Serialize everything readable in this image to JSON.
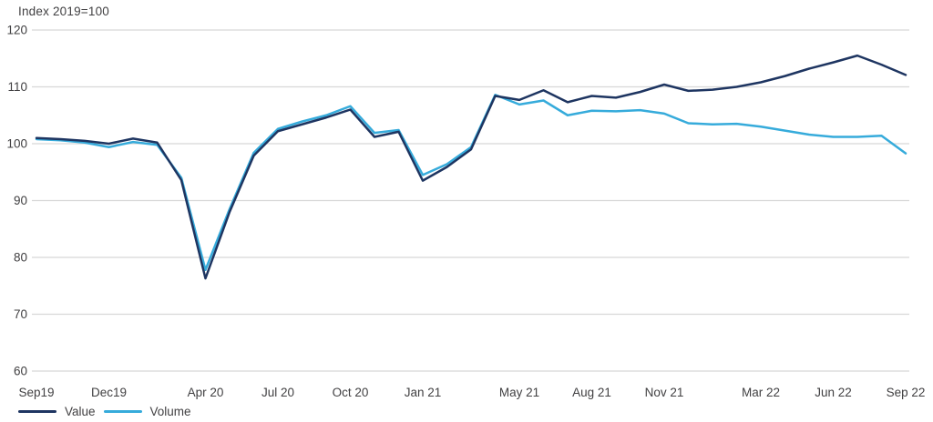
{
  "title": "Index 2019=100",
  "colors": {
    "background": "#ffffff",
    "grid": "#d8d8d8",
    "text": "#414042",
    "value_line": "#1e3561",
    "volume_line": "#36abdb"
  },
  "chart_data": {
    "type": "line",
    "title": "Index 2019=100",
    "xlabel": "",
    "ylabel": "Index 2019=100",
    "ylim": [
      60,
      120
    ],
    "y_ticks": [
      120,
      110,
      100,
      90,
      80,
      70,
      60
    ],
    "grid": "horizontal",
    "legend_position": "bottom-left",
    "x_unit": "monthly, Sep 2019 to Sep 2022",
    "n_points": 37,
    "x_ticks": [
      {
        "label": "Sep19",
        "month_index": 0
      },
      {
        "label": "Dec19",
        "month_index": 3
      },
      {
        "label": "Apr 20",
        "month_index": 7
      },
      {
        "label": "Jul 20",
        "month_index": 10
      },
      {
        "label": "Oct 20",
        "month_index": 13
      },
      {
        "label": "Jan 21",
        "month_index": 16
      },
      {
        "label": "May 21",
        "month_index": 20
      },
      {
        "label": "Aug 21",
        "month_index": 23
      },
      {
        "label": "Nov 21",
        "month_index": 26
      },
      {
        "label": "Mar 22",
        "month_index": 30
      },
      {
        "label": "Jun 22",
        "month_index": 33
      },
      {
        "label": "Sep 22",
        "month_index": 36
      }
    ],
    "series": [
      {
        "name": "Value",
        "color": "#1e3561",
        "values": [
          101.0,
          100.8,
          100.5,
          100.0,
          100.9,
          100.2,
          93.6,
          76.3,
          88.0,
          97.9,
          102.2,
          103.4,
          104.6,
          106.0,
          101.2,
          102.1,
          93.5,
          95.9,
          99.0,
          108.4,
          107.7,
          109.4,
          107.3,
          108.4,
          108.1,
          109.1,
          110.4,
          109.3,
          109.5,
          110.0,
          110.8,
          111.9,
          113.2,
          114.3,
          115.5,
          113.9,
          112.1
        ]
      },
      {
        "name": "Volume",
        "color": "#36abdb",
        "values": [
          100.8,
          100.6,
          100.2,
          99.4,
          100.3,
          99.8,
          94.0,
          77.8,
          88.5,
          98.4,
          102.6,
          103.9,
          105.0,
          106.6,
          101.9,
          102.4,
          94.5,
          96.4,
          99.4,
          108.6,
          106.9,
          107.6,
          105.0,
          105.8,
          105.7,
          105.9,
          105.3,
          103.6,
          103.4,
          103.5,
          103.0,
          102.3,
          101.6,
          101.2,
          101.2,
          101.4,
          98.3
        ]
      }
    ]
  }
}
